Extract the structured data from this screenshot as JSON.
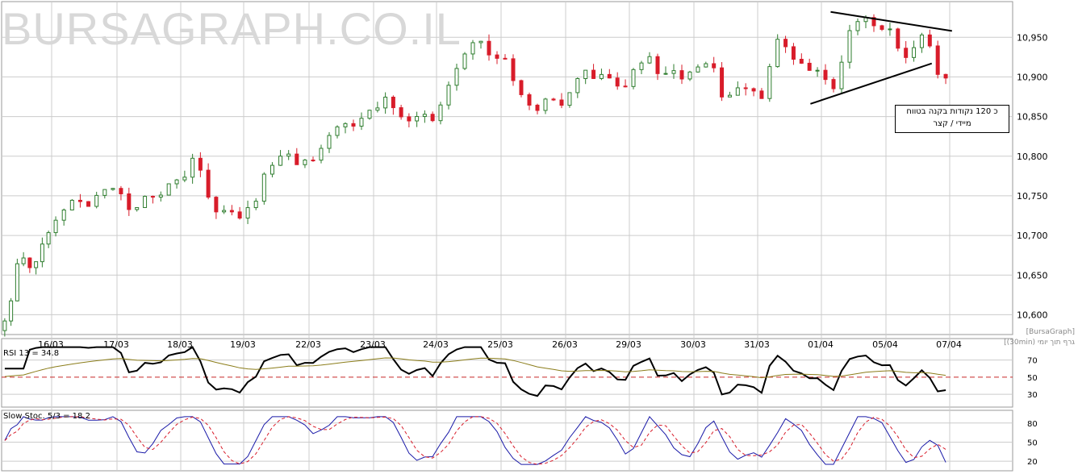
{
  "watermark": "BURSAGRAPH.CO.IL",
  "credit": {
    "line1": "[BursaGraph]",
    "line2": "[(30min) גרף תוך יומי"
  },
  "annotation": {
    "line1": "כ 120 נקודות בקנה בטווח",
    "line2": "מיידי / קצר"
  },
  "colors": {
    "up_candle": "#2e7d2e",
    "down_candle": "#d81c2a",
    "grid": "#cccccc",
    "rsi_line": "#000000",
    "rsi_ma": "#8b7d1a",
    "rsi_ref": "#c82828",
    "stoch_k": "#1a1aa8",
    "stoch_d": "#d81c2a"
  },
  "chart_data": [
    {
      "type": "candlestick",
      "interval": "30min",
      "x_tick_labels": [
        "16/03",
        "17/03",
        "18/03",
        "19/03",
        "22/03",
        "23/03",
        "24/03",
        "25/03",
        "26/03",
        "29/03",
        "30/03",
        "31/03",
        "01/04",
        "05/04",
        "07/04"
      ],
      "y_tick_labels": [
        "10,950",
        "10,900",
        "10,850",
        "10,800",
        "10,750",
        "10,700",
        "10,650",
        "10,600"
      ],
      "ylim": [
        10575,
        10995
      ],
      "grid": true,
      "daily_path": [
        [
          10580,
          10600,
          10640,
          10680,
          10660,
          10650,
          10680,
          10700
        ],
        [
          10705,
          10730,
          10740,
          10750,
          10745,
          10735,
          10760,
          10762
        ],
        [
          10762,
          10740,
          10720,
          10750,
          10760,
          10740,
          10765,
          10770
        ],
        [
          10770,
          10790,
          10810,
          10760,
          10730,
          10725,
          10735,
          10720
        ],
        [
          10720,
          10740,
          10760,
          10785,
          10790,
          10805,
          10795,
          10790
        ],
        [
          10790,
          10810,
          10820,
          10835,
          10840,
          10830,
          10845,
          10855
        ],
        [
          10855,
          10870,
          10875,
          10860,
          10850,
          10845,
          10850,
          10850
        ],
        [
          10850,
          10880,
          10905,
          10925,
          10945,
          10950,
          10935,
          10925
        ],
        [
          10925,
          10910,
          10890,
          10860,
          10855,
          10870,
          10880,
          10860
        ],
        [
          10860,
          10890,
          10910,
          10905,
          10895,
          10900,
          10895,
          10890
        ],
        [
          10890,
          10915,
          10930,
          10910,
          10895,
          10900,
          10905,
          10900
        ],
        [
          10900,
          10915,
          10930,
          10880,
          10865,
          10880,
          10900,
          10880
        ],
        [
          10880,
          10865,
          10950,
          10935,
          10930,
          10915,
          10910,
          10905
        ],
        [
          10905,
          10890,
          10880,
          10945,
          10978,
          10975,
          10968,
          10965
        ],
        [
          10965,
          10945,
          10920,
          10925,
          10940,
          10955,
          10920,
          10900
        ]
      ],
      "triangle": {
        "upper": [
          [
            0.82,
            10982
          ],
          [
            0.94,
            10958
          ]
        ],
        "lower": [
          [
            0.8,
            10866
          ],
          [
            0.92,
            10917
          ]
        ]
      }
    },
    {
      "type": "line",
      "title": "RSI 13 = 34.8",
      "y_tick_labels": [
        "70",
        "50",
        "30"
      ],
      "ylim": [
        15,
        95
      ],
      "reference_line": 50,
      "last_value": 34.8
    },
    {
      "type": "line",
      "title": "Slow Stoc. 5/3 = 18.2",
      "y_tick_labels": [
        "80",
        "50",
        "20"
      ],
      "ylim": [
        5,
        100
      ],
      "last_value": 18.2
    }
  ]
}
